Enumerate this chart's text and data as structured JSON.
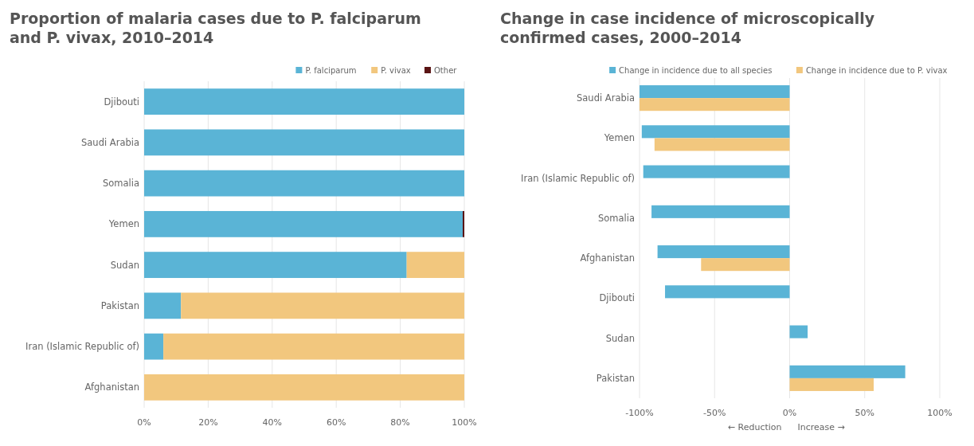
{
  "chart_data": [
    {
      "type": "bar",
      "orientation": "horizontal",
      "stacked": true,
      "title": "Proportion of malaria cases due to P. falciparum and P. vivax, 2010–2014",
      "categories": [
        "Djibouti",
        "Saudi Arabia",
        "Somalia",
        "Yemen",
        "Sudan",
        "Pakistan",
        "Iran (Islamic Republic of)",
        "Afghanistan"
      ],
      "series": [
        {
          "name": "P. falciparum",
          "color": "#5ab4d6",
          "values": [
            100,
            100,
            100,
            99.5,
            82,
            11.5,
            6,
            0
          ]
        },
        {
          "name": "P. vivax",
          "color": "#f2c77e",
          "values": [
            0,
            0,
            0,
            0,
            18,
            88.5,
            94,
            100
          ]
        },
        {
          "name": "Other",
          "color": "#5a1414",
          "values": [
            0,
            0,
            0,
            0.5,
            0,
            0,
            0,
            0
          ]
        }
      ],
      "xlim": [
        0,
        100
      ],
      "xticks": [
        {
          "value": 0,
          "label": "0%"
        },
        {
          "value": 20,
          "label": "20%"
        },
        {
          "value": 40,
          "label": "40%"
        },
        {
          "value": 60,
          "label": "60%"
        },
        {
          "value": 80,
          "label": "80%"
        },
        {
          "value": 100,
          "label": "100%"
        }
      ],
      "grid": "x",
      "legend": "top right"
    },
    {
      "type": "bar",
      "orientation": "horizontal",
      "title": "Change in case incidence of microscopically confirmed cases, 2000–2014",
      "categories": [
        "Saudi Arabia",
        "Yemen",
        "Iran (Islamic Republic of)",
        "Somalia",
        "Afghanistan",
        "Djibouti",
        "Sudan",
        "Pakistan"
      ],
      "series": [
        {
          "name": "Change in incidence due to all species",
          "color": "#5ab4d6",
          "values": [
            -100,
            -98.5,
            -97.5,
            -92,
            -88,
            -83,
            12,
            77
          ]
        },
        {
          "name": "Change in incidence due to P. vivax",
          "color": "#f2c77e",
          "values": [
            -100,
            -90,
            null,
            null,
            -59,
            null,
            null,
            56
          ]
        }
      ],
      "xlim": [
        -100,
        100
      ],
      "xticks": [
        {
          "value": -100,
          "label": "-100%"
        },
        {
          "value": -50,
          "label": "-50%"
        },
        {
          "value": 0,
          "label": "0%"
        },
        {
          "value": 50,
          "label": "50%"
        },
        {
          "value": 100,
          "label": "100%"
        }
      ],
      "grid": "x",
      "legend": "top",
      "annotations": [
        "← Reduction",
        "Increase →"
      ]
    }
  ]
}
